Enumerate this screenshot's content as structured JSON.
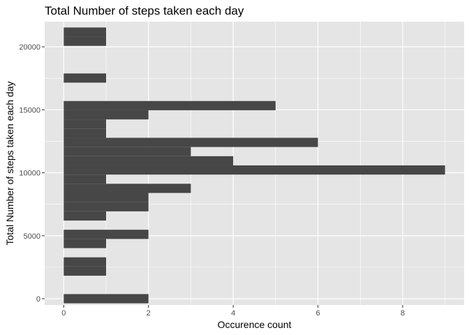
{
  "chart_data": {
    "type": "bar",
    "orientation": "horizontal",
    "title": "Total Number of steps taken each day",
    "xlabel": "Occurence count",
    "ylabel": "Total Number of steps taken each day",
    "xlim": [
      -0.45,
      9.45
    ],
    "ylim": [
      -500,
      22000
    ],
    "x_ticks": [
      0,
      2,
      4,
      6,
      8
    ],
    "y_ticks": [
      0,
      5000,
      10000,
      15000,
      20000
    ],
    "bin_width": 730,
    "bins": [
      {
        "center": 0,
        "count": 2
      },
      {
        "center": 2190,
        "count": 1
      },
      {
        "center": 2920,
        "count": 1
      },
      {
        "center": 4380,
        "count": 1
      },
      {
        "center": 5110,
        "count": 2
      },
      {
        "center": 6570,
        "count": 1
      },
      {
        "center": 7300,
        "count": 2
      },
      {
        "center": 8030,
        "count": 2
      },
      {
        "center": 8760,
        "count": 3
      },
      {
        "center": 9490,
        "count": 1
      },
      {
        "center": 10220,
        "count": 9
      },
      {
        "center": 10950,
        "count": 4
      },
      {
        "center": 11680,
        "count": 3
      },
      {
        "center": 12410,
        "count": 6
      },
      {
        "center": 13140,
        "count": 1
      },
      {
        "center": 13870,
        "count": 1
      },
      {
        "center": 14600,
        "count": 2
      },
      {
        "center": 15330,
        "count": 5
      },
      {
        "center": 17520,
        "count": 1
      },
      {
        "center": 20440,
        "count": 1
      },
      {
        "center": 21170,
        "count": 1
      }
    ],
    "colors": {
      "panel_background": "#e5e5e5",
      "grid": "#ffffff",
      "bar": "#474747",
      "tick_text": "#4d4d4d",
      "text": "#000000"
    },
    "grid": true,
    "legend": "none"
  }
}
